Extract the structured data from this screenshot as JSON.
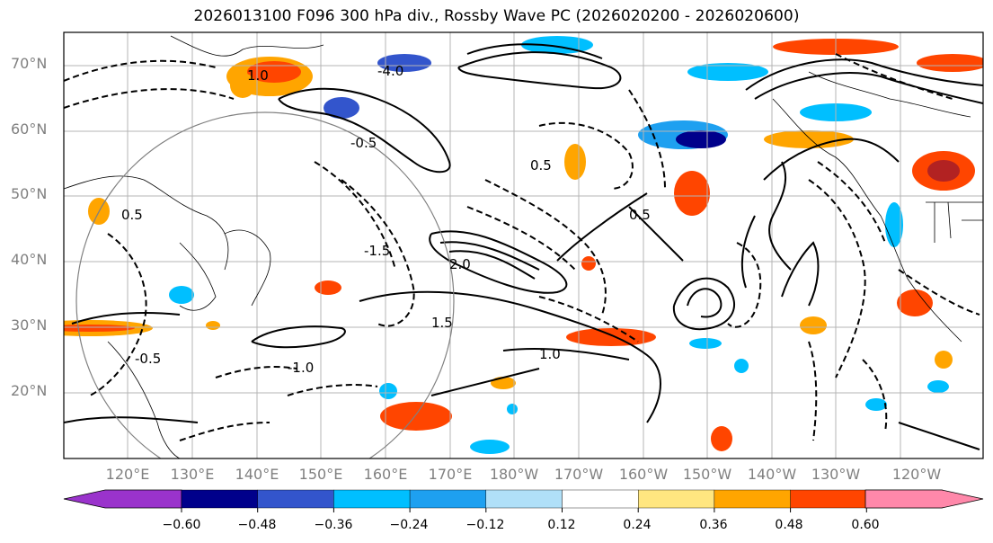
{
  "title": "2026013100 F096 300 hPa div., Rossby Wave PC (2026020200 - 2026020600)",
  "lat_labels": [
    {
      "text": "70°N"
    },
    {
      "text": "60°N"
    },
    {
      "text": "50°N"
    },
    {
      "text": "40°N"
    },
    {
      "text": "30°N"
    },
    {
      "text": "20°N"
    }
  ],
  "lon_labels": [
    {
      "text": "120°E"
    },
    {
      "text": "130°E"
    },
    {
      "text": "140°E"
    },
    {
      "text": "150°E"
    },
    {
      "text": "160°E"
    },
    {
      "text": "170°E"
    },
    {
      "text": "180°W"
    },
    {
      "text": "170°W"
    },
    {
      "text": "160°W"
    },
    {
      "text": "150°W"
    },
    {
      "text": "140°W"
    },
    {
      "text": "130°W"
    },
    {
      "text": "120°W"
    }
  ],
  "colorbar": {
    "colors": [
      "#9a33cc",
      "#00008b",
      "#3355cc",
      "#00bfff",
      "#1ea0f0",
      "#b0e0f8",
      "#ffffff",
      "#ffe680",
      "#ffa500",
      "#ff4500",
      "#b22222",
      "#ff88aa"
    ],
    "labels": [
      "−0.60",
      "−0.48",
      "−0.36",
      "−0.24",
      "−0.12",
      "0.12",
      "0.24",
      "0.36",
      "0.48",
      "0.60"
    ]
  },
  "contour_labels": [
    {
      "text": "1.0"
    },
    {
      "text": "0.5"
    },
    {
      "text": "-0.5"
    },
    {
      "text": "1.5"
    },
    {
      "text": "-1.0"
    },
    {
      "text": "2.0"
    },
    {
      "text": "-4.0"
    },
    {
      "text": "-1.5"
    },
    {
      "text": "0.5"
    },
    {
      "text": "1.0"
    },
    {
      "text": "-0.5"
    },
    {
      "text": "0.5"
    }
  ]
}
